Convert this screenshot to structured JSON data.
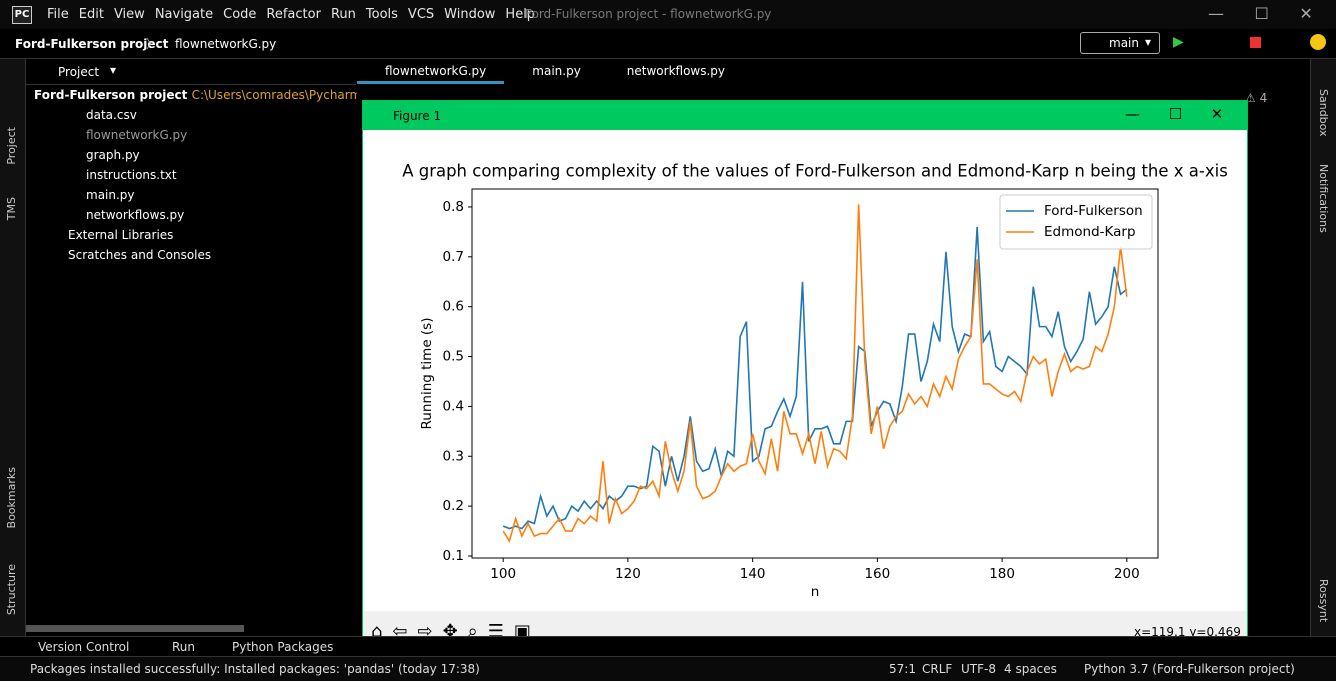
{
  "window": {
    "logo": "PC",
    "menu": [
      "File",
      "Edit",
      "View",
      "Navigate",
      "Code",
      "Refactor",
      "Run",
      "Tools",
      "VCS",
      "Window",
      "Help"
    ],
    "title": "Ford-Fulkerson project - flownetworkG.py"
  },
  "navbar": {
    "project": "Ford-Fulkerson project",
    "file": "flownetworkG.py",
    "run_config": "main"
  },
  "sidebar_left": [
    "Project",
    "TMS",
    "Bookmarks",
    "Structure"
  ],
  "project_panel": {
    "title": "Project",
    "root": "Ford-Fulkerson project",
    "root_path": "C:\\Users\\comrades\\PycharmP",
    "files": [
      "data.csv",
      "flownetworkG.py",
      "graph.py",
      "instructions.txt",
      "main.py",
      "networkflows.py"
    ],
    "groups": [
      "External Libraries",
      "Scratches and Consoles"
    ]
  },
  "tabs": [
    "flownetworkG.py",
    "main.py",
    "networkflows.py"
  ],
  "warnings": 4,
  "figure": {
    "title": "Figure 1",
    "coords": "x=119.1 y=0.469"
  },
  "chart_data": {
    "type": "line",
    "title": "A graph comparing complexity of the values of Ford-Fulkerson and Edmond-Karp n being the x a-xis",
    "xlabel": "n",
    "ylabel": "Running time (s)",
    "x": [
      100,
      101,
      102,
      103,
      104,
      105,
      106,
      107,
      108,
      109,
      110,
      111,
      112,
      113,
      114,
      115,
      116,
      117,
      118,
      119,
      120,
      121,
      122,
      123,
      124,
      125,
      126,
      127,
      128,
      129,
      130,
      131,
      132,
      133,
      134,
      135,
      136,
      137,
      138,
      139,
      140,
      141,
      142,
      143,
      144,
      145,
      146,
      147,
      148,
      149,
      150,
      151,
      152,
      153,
      154,
      155,
      156,
      157,
      158,
      159,
      160,
      161,
      162,
      163,
      164,
      165,
      166,
      167,
      168,
      169,
      170,
      171,
      172,
      173,
      174,
      175,
      176,
      177,
      178,
      179,
      180,
      181,
      182,
      183,
      184,
      185,
      186,
      187,
      188,
      189,
      190,
      191,
      192,
      193,
      194,
      195,
      196,
      197,
      198,
      199,
      200
    ],
    "series": [
      {
        "name": "Ford-Fulkerson",
        "color": "#1f77b4",
        "values": [
          0.16,
          0.155,
          0.16,
          0.155,
          0.17,
          0.165,
          0.22,
          0.18,
          0.2,
          0.17,
          0.175,
          0.2,
          0.19,
          0.21,
          0.195,
          0.21,
          0.195,
          0.22,
          0.21,
          0.22,
          0.24,
          0.24,
          0.235,
          0.24,
          0.32,
          0.31,
          0.24,
          0.3,
          0.25,
          0.3,
          0.38,
          0.29,
          0.27,
          0.275,
          0.315,
          0.26,
          0.31,
          0.3,
          0.54,
          0.57,
          0.29,
          0.3,
          0.355,
          0.36,
          0.39,
          0.415,
          0.38,
          0.42,
          0.65,
          0.33,
          0.355,
          0.355,
          0.36,
          0.325,
          0.325,
          0.37,
          0.37,
          0.52,
          0.51,
          0.36,
          0.39,
          0.41,
          0.405,
          0.37,
          0.44,
          0.545,
          0.545,
          0.45,
          0.49,
          0.565,
          0.53,
          0.71,
          0.56,
          0.51,
          0.545,
          0.54,
          0.76,
          0.53,
          0.55,
          0.48,
          0.47,
          0.5,
          0.49,
          0.48,
          0.465,
          0.64,
          0.56,
          0.56,
          0.54,
          0.59,
          0.52,
          0.49,
          0.51,
          0.535,
          0.63,
          0.565,
          0.58,
          0.6,
          0.68,
          0.625,
          0.635
        ]
      },
      {
        "name": "Edmond-Karp",
        "color": "#ff7f0e",
        "values": [
          0.15,
          0.13,
          0.175,
          0.14,
          0.165,
          0.14,
          0.145,
          0.145,
          0.16,
          0.175,
          0.15,
          0.15,
          0.175,
          0.165,
          0.18,
          0.17,
          0.29,
          0.165,
          0.215,
          0.185,
          0.195,
          0.21,
          0.24,
          0.235,
          0.25,
          0.22,
          0.33,
          0.27,
          0.23,
          0.27,
          0.37,
          0.24,
          0.215,
          0.22,
          0.23,
          0.26,
          0.285,
          0.27,
          0.28,
          0.285,
          0.345,
          0.29,
          0.265,
          0.335,
          0.27,
          0.39,
          0.345,
          0.345,
          0.305,
          0.345,
          0.285,
          0.35,
          0.28,
          0.315,
          0.31,
          0.295,
          0.38,
          0.805,
          0.49,
          0.345,
          0.4,
          0.315,
          0.36,
          0.38,
          0.39,
          0.425,
          0.405,
          0.42,
          0.4,
          0.445,
          0.42,
          0.46,
          0.435,
          0.495,
          0.52,
          0.54,
          0.695,
          0.445,
          0.445,
          0.435,
          0.425,
          0.42,
          0.43,
          0.41,
          0.47,
          0.5,
          0.485,
          0.495,
          0.42,
          0.47,
          0.505,
          0.47,
          0.48,
          0.475,
          0.48,
          0.52,
          0.51,
          0.545,
          0.6,
          0.72,
          0.62
        ]
      }
    ],
    "xlim": [
      95,
      205
    ],
    "xticks": [
      100,
      120,
      140,
      160,
      180,
      200
    ],
    "ylim": [
      0.096,
      0.836
    ],
    "yticks": [
      0.1,
      0.2,
      0.3,
      0.4,
      0.5,
      0.6,
      0.7,
      0.8
    ],
    "grid": false,
    "legend": "upper right"
  },
  "tool_windows": [
    "Version Control",
    "Run",
    "Python Packages"
  ],
  "status": {
    "message": "Packages installed successfully: Installed packages: 'pandas' (today 17:38)",
    "position": "57:1",
    "line_ending": "CRLF",
    "encoding": "UTF-8",
    "indent": "4 spaces",
    "interpreter": "Python 3.7 (Ford-Fulkerson project)"
  },
  "sidebar_right": [
    "Sandbox",
    "Notifications",
    "Rossynt"
  ]
}
